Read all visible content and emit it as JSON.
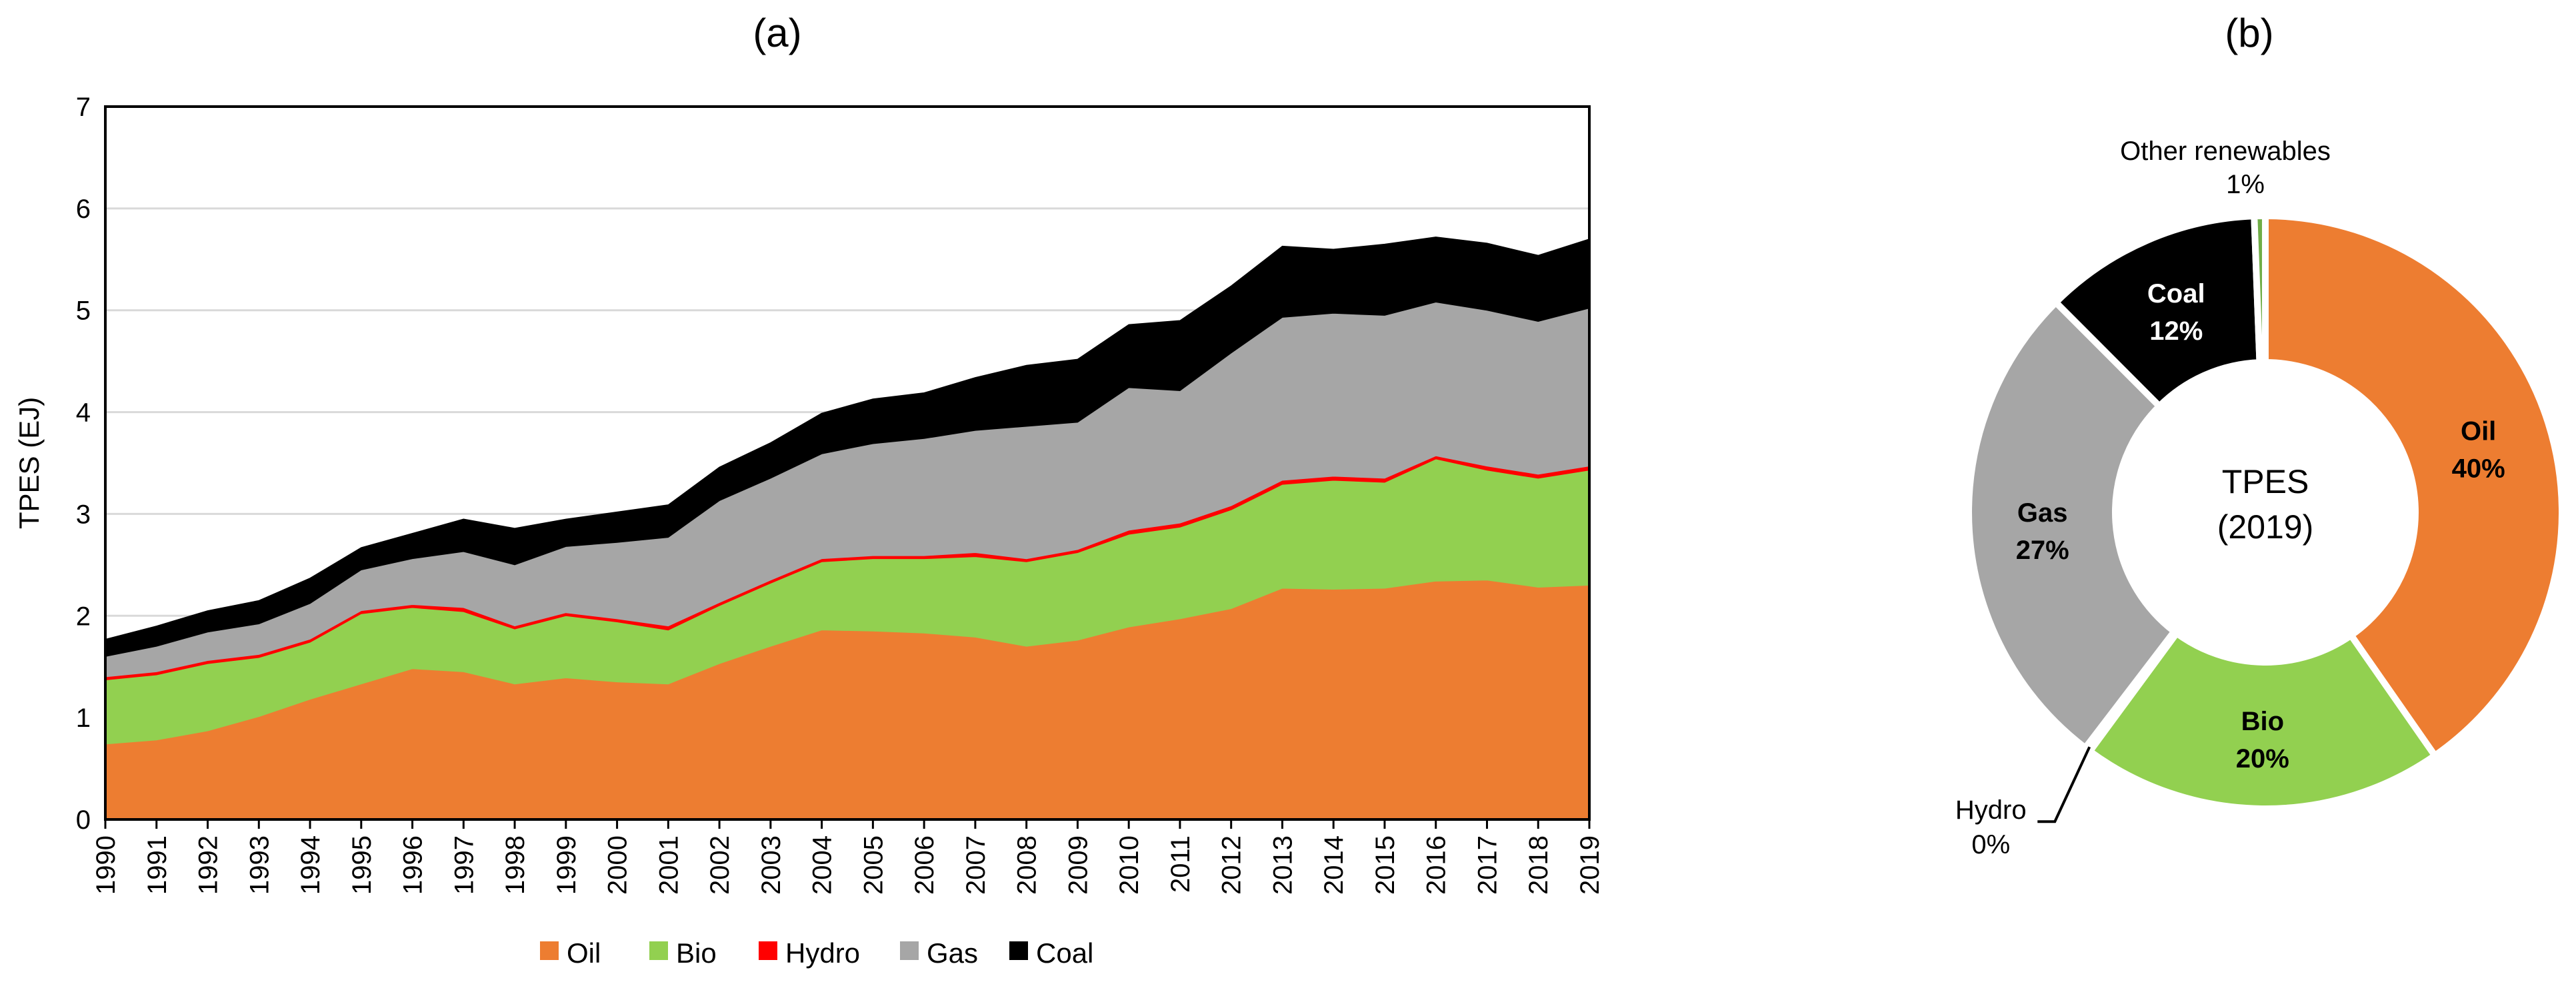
{
  "chart_data": [
    {
      "type": "area",
      "stacked": true,
      "title": "(a)",
      "ylabel": "TPES (EJ)",
      "xlabel": "",
      "ylim": [
        0,
        7
      ],
      "yticks": [
        0,
        1,
        2,
        3,
        4,
        5,
        6,
        7
      ],
      "grid": true,
      "legend_position": "bottom",
      "x": [
        "1990",
        "1991",
        "1992",
        "1993",
        "1994",
        "1995",
        "1996",
        "1997",
        "1998",
        "1999",
        "2000",
        "2001",
        "2002",
        "2003",
        "2004",
        "2005",
        "2006",
        "2007",
        "2008",
        "2009",
        "2010",
        "2011",
        "2012",
        "2013",
        "2014",
        "2015",
        "2016",
        "2017",
        "2018",
        "2019"
      ],
      "series": [
        {
          "name": "Oil",
          "color": "#ED7D31",
          "values": [
            0.74,
            0.78,
            0.87,
            1.01,
            1.18,
            1.33,
            1.48,
            1.45,
            1.33,
            1.39,
            1.35,
            1.33,
            1.53,
            1.7,
            1.86,
            1.85,
            1.83,
            1.79,
            1.7,
            1.76,
            1.89,
            1.97,
            2.07,
            2.27,
            2.26,
            2.27,
            2.34,
            2.35,
            2.28,
            2.3
          ]
        },
        {
          "name": "Bio",
          "color": "#92D050",
          "values": [
            0.63,
            0.64,
            0.66,
            0.58,
            0.56,
            0.69,
            0.6,
            0.59,
            0.54,
            0.61,
            0.59,
            0.53,
            0.57,
            0.62,
            0.67,
            0.71,
            0.73,
            0.79,
            0.83,
            0.86,
            0.91,
            0.9,
            0.97,
            1.02,
            1.07,
            1.04,
            1.2,
            1.08,
            1.07,
            1.13
          ]
        },
        {
          "name": "Hydro",
          "color": "#FF0000",
          "values": [
            0.03,
            0.03,
            0.03,
            0.03,
            0.03,
            0.03,
            0.03,
            0.04,
            0.03,
            0.03,
            0.03,
            0.04,
            0.03,
            0.03,
            0.03,
            0.03,
            0.03,
            0.04,
            0.03,
            0.03,
            0.04,
            0.04,
            0.04,
            0.04,
            0.04,
            0.04,
            0.03,
            0.04,
            0.04,
            0.04
          ]
        },
        {
          "name": "Gas",
          "color": "#A6A6A6",
          "values": [
            0.2,
            0.25,
            0.28,
            0.3,
            0.35,
            0.4,
            0.45,
            0.55,
            0.6,
            0.65,
            0.75,
            0.87,
            1.0,
            1.0,
            1.03,
            1.1,
            1.15,
            1.2,
            1.3,
            1.25,
            1.4,
            1.3,
            1.5,
            1.6,
            1.6,
            1.6,
            1.51,
            1.53,
            1.5,
            1.55
          ]
        },
        {
          "name": "Coal",
          "color": "#000000",
          "values": [
            0.17,
            0.2,
            0.21,
            0.23,
            0.25,
            0.22,
            0.25,
            0.32,
            0.36,
            0.27,
            0.3,
            0.32,
            0.33,
            0.35,
            0.4,
            0.44,
            0.45,
            0.52,
            0.6,
            0.62,
            0.62,
            0.69,
            0.66,
            0.7,
            0.63,
            0.7,
            0.64,
            0.66,
            0.65,
            0.68
          ]
        }
      ]
    },
    {
      "type": "pie",
      "donut": true,
      "title": "(b)",
      "center_label": [
        "TPES",
        "(2019)"
      ],
      "slices": [
        {
          "name": "Oil",
          "value": 40.4,
          "label": "Oil",
          "pct_label": "40%",
          "color": "#ED7D31",
          "label_style": "dark"
        },
        {
          "name": "Bio",
          "value": 19.8,
          "label": "Bio",
          "pct_label": "20%",
          "color": "#92D050",
          "label_style": "dark"
        },
        {
          "name": "Hydro",
          "value": 0.3,
          "label": "Hydro",
          "pct_label": "0%",
          "color": "#FF0000",
          "label_style": "outer"
        },
        {
          "name": "Gas",
          "value": 27.2,
          "label": "Gas",
          "pct_label": "27%",
          "color": "#A6A6A6",
          "label_style": "dark"
        },
        {
          "name": "Coal",
          "value": 11.9,
          "label": "Coal",
          "pct_label": "12%",
          "color": "#000000",
          "label_style": "light"
        },
        {
          "name": "Other renewables",
          "value": 0.6,
          "label": "Other renewables",
          "pct_label": "1%",
          "color": "#70AD47",
          "label_style": "outer"
        }
      ]
    }
  ]
}
